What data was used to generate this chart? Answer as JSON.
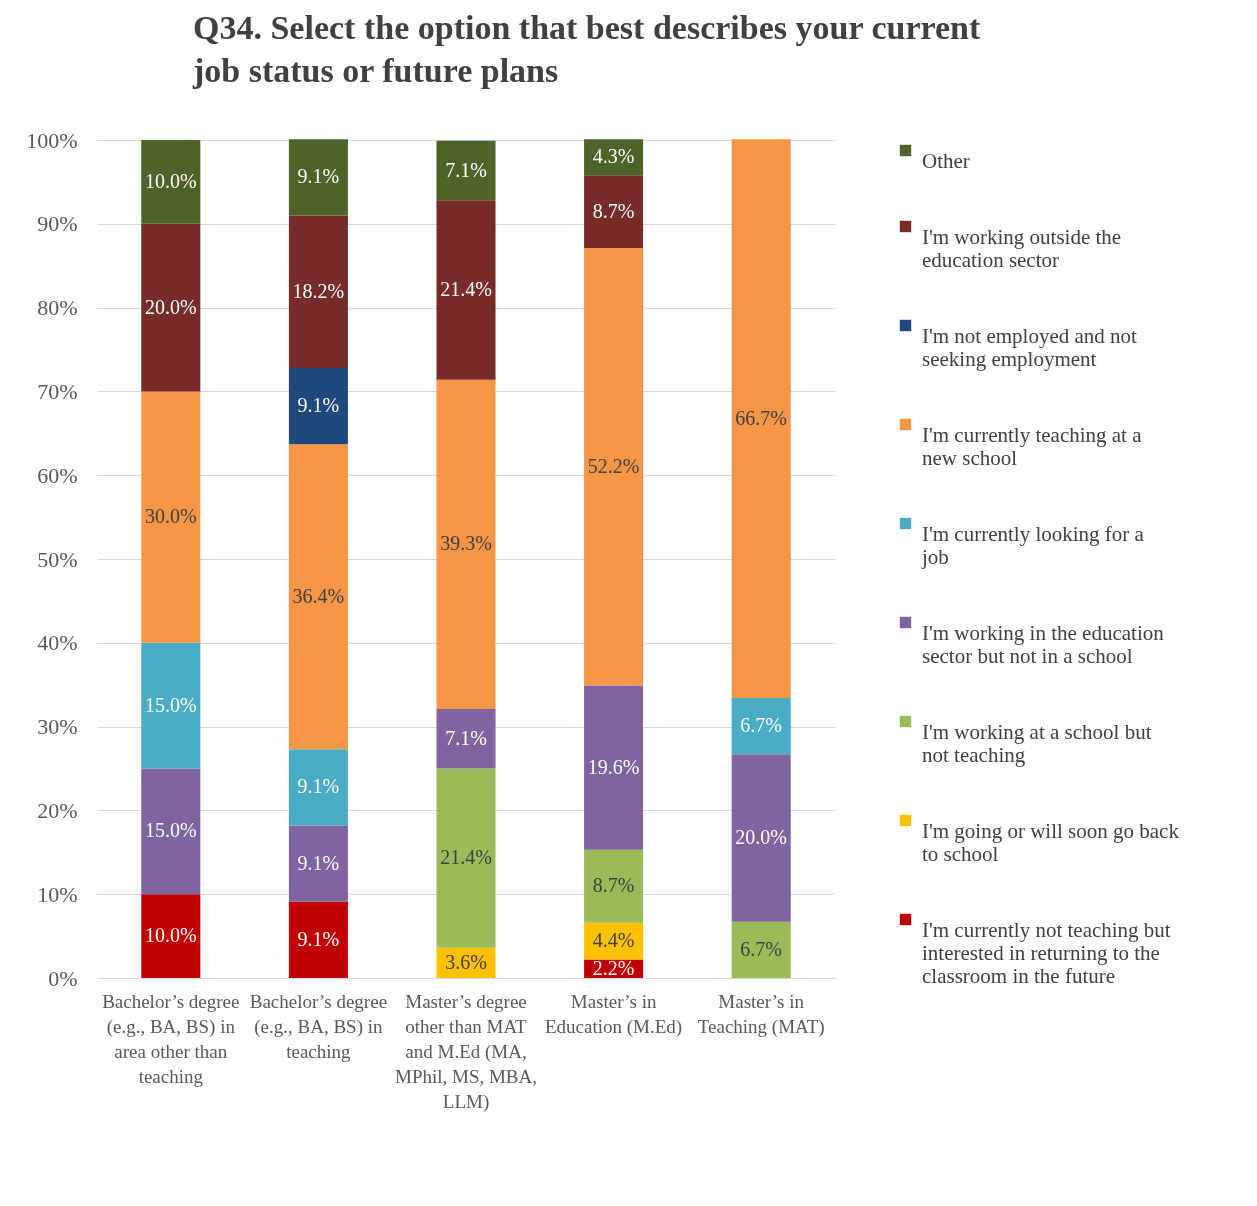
{
  "chart_data": {
    "type": "bar",
    "title": "Q34. Select the option that best describes your current job status or future plans",
    "categories": [
      "Bachelor’s degree (e.g., BA, BS) in area other than teaching",
      "Bachelor’s degree (e.g., BA, BS) in teaching",
      "Master’s degree other than MAT and M.Ed (MA, MPhil, MS, MBA, LLM)",
      "Master’s in Education (M.Ed)",
      "Master’s in Teaching (MAT)"
    ],
    "stacked": true,
    "series": [
      {
        "name": "I'm currently not teaching but interested in returning to the classroom in the future",
        "color": "#c00000",
        "values": [
          10.0,
          9.1,
          null,
          2.2,
          null
        ],
        "value_labels": [
          "10.0%",
          "9.1%",
          null,
          "2.2%",
          null
        ]
      },
      {
        "name": "I'm going or will soon go back to school",
        "color": "#ffc000",
        "values": [
          null,
          null,
          3.6,
          4.4,
          null
        ],
        "value_labels": [
          null,
          null,
          "3.6%",
          "4.4%",
          null
        ]
      },
      {
        "name": "I'm working at a school but not teaching",
        "color": "#9bbb59",
        "values": [
          null,
          null,
          21.4,
          8.7,
          6.7
        ],
        "value_labels": [
          null,
          null,
          "21.4%",
          "8.7%",
          "6.7%"
        ]
      },
      {
        "name": "I'm working in the education sector but not in a school",
        "color": "#8064a2",
        "values": [
          15.0,
          9.1,
          7.1,
          19.6,
          20.0
        ],
        "value_labels": [
          "15.0%",
          "9.1%",
          "7.1%",
          "19.6%",
          "20.0%"
        ]
      },
      {
        "name": "I'm currently looking for a job",
        "color": "#4bacc6",
        "values": [
          15.0,
          9.1,
          null,
          null,
          6.7
        ],
        "value_labels": [
          "15.0%",
          "9.1%",
          null,
          null,
          "6.7%"
        ]
      },
      {
        "name": "I'm currently teaching at a new school",
        "color": "#f79646",
        "values": [
          30.0,
          36.4,
          39.3,
          52.2,
          66.7
        ],
        "value_labels": [
          "30.0%",
          "36.4%",
          "39.3%",
          "52.2%",
          "66.7%"
        ]
      },
      {
        "name": "I'm not employed and not seeking employment",
        "color": "#1f497d",
        "values": [
          null,
          9.1,
          null,
          null,
          null
        ],
        "value_labels": [
          null,
          "9.1%",
          null,
          null,
          null
        ]
      },
      {
        "name": "I'm working outside the education sector",
        "color": "#772c2a",
        "values": [
          20.0,
          18.2,
          21.4,
          8.7,
          null
        ],
        "value_labels": [
          "20.0%",
          "18.2%",
          "21.4%",
          "8.7%",
          null
        ]
      },
      {
        "name": "Other",
        "color": "#4f6228",
        "values": [
          10.0,
          9.1,
          7.1,
          4.3,
          null
        ],
        "value_labels": [
          "10.0%",
          "9.1%",
          "7.1%",
          "4.3%",
          null
        ]
      }
    ],
    "ylim": [
      0,
      100
    ],
    "yticks": [
      {
        "value": 0,
        "label": "0%"
      },
      {
        "value": 10,
        "label": "10%"
      },
      {
        "value": 20,
        "label": "20%"
      },
      {
        "value": 30,
        "label": "30%"
      },
      {
        "value": 40,
        "label": "40%"
      },
      {
        "value": 50,
        "label": "50%"
      },
      {
        "value": 60,
        "label": "60%"
      },
      {
        "value": 70,
        "label": "70%"
      },
      {
        "value": 80,
        "label": "80%"
      },
      {
        "value": 90,
        "label": "90%"
      },
      {
        "value": 100,
        "label": "100%"
      }
    ],
    "grid": "y",
    "legend": "right"
  }
}
